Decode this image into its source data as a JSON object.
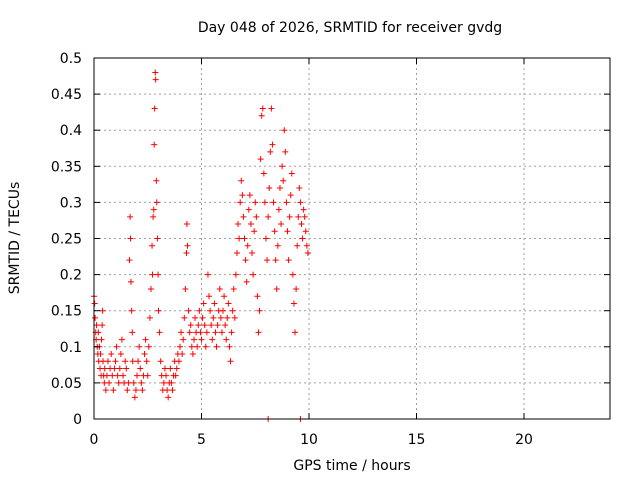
{
  "chart_data": {
    "type": "scatter",
    "title": "Day 048 of 2026, SRMTID for receiver gvdg",
    "xlabel": "GPS time / hours",
    "ylabel": "SRMTID / TECUs",
    "xlim": [
      0,
      24
    ],
    "ylim": [
      0,
      0.5
    ],
    "xticks": [
      0,
      5,
      10,
      15,
      20
    ],
    "xtick_labels": [
      "0",
      "5",
      "10",
      "15",
      "20"
    ],
    "yticks": [
      0,
      0.05,
      0.1,
      0.15,
      0.2,
      0.25,
      0.3,
      0.35,
      0.4,
      0.45,
      0.5
    ],
    "ytick_labels": [
      "0",
      "0.05",
      "0.1",
      "0.15",
      "0.2",
      "0.25",
      "0.3",
      "0.35",
      "0.4",
      "0.45",
      "0.5"
    ],
    "grid": true,
    "marker": "+",
    "marker_color": "#ff0000",
    "series": [
      {
        "name": "SRMTID",
        "points": [
          [
            0.0,
            0.17
          ],
          [
            0.03,
            0.16
          ],
          [
            0.05,
            0.14
          ],
          [
            0.08,
            0.12
          ],
          [
            0.1,
            0.11
          ],
          [
            0.12,
            0.13
          ],
          [
            0.15,
            0.1
          ],
          [
            0.18,
            0.09
          ],
          [
            0.2,
            0.12
          ],
          [
            0.22,
            0.08
          ],
          [
            0.25,
            0.1
          ],
          [
            0.28,
            0.07
          ],
          [
            0.3,
            0.09
          ],
          [
            0.33,
            0.06
          ],
          [
            0.35,
            0.11
          ],
          [
            0.38,
            0.13
          ],
          [
            0.4,
            0.15
          ],
          [
            0.42,
            0.08
          ],
          [
            0.45,
            0.06
          ],
          [
            0.48,
            0.05
          ],
          [
            0.5,
            0.07
          ],
          [
            0.55,
            0.04
          ],
          [
            0.6,
            0.06
          ],
          [
            0.65,
            0.08
          ],
          [
            0.7,
            0.05
          ],
          [
            0.75,
            0.07
          ],
          [
            0.8,
            0.09
          ],
          [
            0.85,
            0.06
          ],
          [
            0.9,
            0.04
          ],
          [
            0.95,
            0.07
          ],
          [
            1.0,
            0.08
          ],
          [
            1.05,
            0.1
          ],
          [
            1.1,
            0.06
          ],
          [
            1.15,
            0.05
          ],
          [
            1.2,
            0.07
          ],
          [
            1.25,
            0.09
          ],
          [
            1.3,
            0.11
          ],
          [
            1.35,
            0.06
          ],
          [
            1.4,
            0.05
          ],
          [
            1.45,
            0.08
          ],
          [
            1.5,
            0.07
          ],
          [
            1.55,
            0.04
          ],
          [
            1.6,
            0.05
          ],
          [
            1.65,
            0.22
          ],
          [
            1.68,
            0.28
          ],
          [
            1.7,
            0.25
          ],
          [
            1.72,
            0.19
          ],
          [
            1.75,
            0.15
          ],
          [
            1.78,
            0.12
          ],
          [
            1.8,
            0.08
          ],
          [
            1.85,
            0.05
          ],
          [
            1.9,
            0.03
          ],
          [
            1.95,
            0.04
          ],
          [
            2.0,
            0.06
          ],
          [
            2.05,
            0.08
          ],
          [
            2.1,
            0.1
          ],
          [
            2.15,
            0.07
          ],
          [
            2.2,
            0.05
          ],
          [
            2.25,
            0.04
          ],
          [
            2.3,
            0.06
          ],
          [
            2.35,
            0.09
          ],
          [
            2.4,
            0.11
          ],
          [
            2.45,
            0.08
          ],
          [
            2.5,
            0.06
          ],
          [
            2.55,
            0.1
          ],
          [
            2.6,
            0.14
          ],
          [
            2.65,
            0.18
          ],
          [
            2.7,
            0.24
          ],
          [
            2.72,
            0.2
          ],
          [
            2.75,
            0.28
          ],
          [
            2.78,
            0.29
          ],
          [
            2.8,
            0.38
          ],
          [
            2.82,
            0.43
          ],
          [
            2.85,
            0.48
          ],
          [
            2.87,
            0.47
          ],
          [
            2.9,
            0.33
          ],
          [
            2.92,
            0.3
          ],
          [
            2.95,
            0.25
          ],
          [
            2.98,
            0.2
          ],
          [
            3.0,
            0.15
          ],
          [
            3.05,
            0.12
          ],
          [
            3.1,
            0.08
          ],
          [
            3.15,
            0.06
          ],
          [
            3.2,
            0.04
          ],
          [
            3.25,
            0.05
          ],
          [
            3.3,
            0.07
          ],
          [
            3.35,
            0.06
          ],
          [
            3.4,
            0.04
          ],
          [
            3.45,
            0.03
          ],
          [
            3.5,
            0.05
          ],
          [
            3.55,
            0.07
          ],
          [
            3.6,
            0.05
          ],
          [
            3.65,
            0.04
          ],
          [
            3.7,
            0.06
          ],
          [
            3.75,
            0.08
          ],
          [
            3.8,
            0.06
          ],
          [
            3.85,
            0.07
          ],
          [
            3.9,
            0.09
          ],
          [
            3.95,
            0.08
          ],
          [
            4.0,
            0.1
          ],
          [
            4.05,
            0.12
          ],
          [
            4.1,
            0.09
          ],
          [
            4.15,
            0.11
          ],
          [
            4.2,
            0.14
          ],
          [
            4.25,
            0.18
          ],
          [
            4.3,
            0.23
          ],
          [
            4.32,
            0.27
          ],
          [
            4.35,
            0.24
          ],
          [
            4.4,
            0.15
          ],
          [
            4.45,
            0.12
          ],
          [
            4.5,
            0.13
          ],
          [
            4.55,
            0.1
          ],
          [
            4.6,
            0.09
          ],
          [
            4.65,
            0.11
          ],
          [
            4.7,
            0.14
          ],
          [
            4.75,
            0.12
          ],
          [
            4.8,
            0.1
          ],
          [
            4.85,
            0.13
          ],
          [
            4.9,
            0.15
          ],
          [
            4.95,
            0.12
          ],
          [
            5.0,
            0.11
          ],
          [
            5.05,
            0.14
          ],
          [
            5.1,
            0.16
          ],
          [
            5.15,
            0.13
          ],
          [
            5.2,
            0.1
          ],
          [
            5.25,
            0.12
          ],
          [
            5.3,
            0.2
          ],
          [
            5.35,
            0.17
          ],
          [
            5.4,
            0.15
          ],
          [
            5.45,
            0.13
          ],
          [
            5.5,
            0.11
          ],
          [
            5.55,
            0.14
          ],
          [
            5.6,
            0.16
          ],
          [
            5.65,
            0.12
          ],
          [
            5.7,
            0.1
          ],
          [
            5.75,
            0.13
          ],
          [
            5.8,
            0.15
          ],
          [
            5.85,
            0.18
          ],
          [
            5.9,
            0.14
          ],
          [
            5.95,
            0.12
          ],
          [
            6.0,
            0.15
          ],
          [
            6.05,
            0.17
          ],
          [
            6.1,
            0.13
          ],
          [
            6.15,
            0.11
          ],
          [
            6.2,
            0.14
          ],
          [
            6.25,
            0.16
          ],
          [
            6.3,
            0.1
          ],
          [
            6.35,
            0.08
          ],
          [
            6.4,
            0.12
          ],
          [
            6.45,
            0.15
          ],
          [
            6.5,
            0.18
          ],
          [
            6.55,
            0.14
          ],
          [
            6.6,
            0.2
          ],
          [
            6.65,
            0.23
          ],
          [
            6.7,
            0.27
          ],
          [
            6.75,
            0.25
          ],
          [
            6.8,
            0.3
          ],
          [
            6.85,
            0.33
          ],
          [
            6.9,
            0.31
          ],
          [
            6.95,
            0.28
          ],
          [
            7.0,
            0.25
          ],
          [
            7.05,
            0.22
          ],
          [
            7.1,
            0.19
          ],
          [
            7.15,
            0.24
          ],
          [
            7.2,
            0.29
          ],
          [
            7.25,
            0.31
          ],
          [
            7.3,
            0.27
          ],
          [
            7.35,
            0.23
          ],
          [
            7.4,
            0.2
          ],
          [
            7.45,
            0.26
          ],
          [
            7.5,
            0.3
          ],
          [
            7.55,
            0.28
          ],
          [
            7.6,
            0.17
          ],
          [
            7.65,
            0.12
          ],
          [
            7.7,
            0.15
          ],
          [
            7.75,
            0.36
          ],
          [
            7.8,
            0.42
          ],
          [
            7.85,
            0.43
          ],
          [
            7.9,
            0.34
          ],
          [
            7.95,
            0.3
          ],
          [
            8.0,
            0.25
          ],
          [
            8.05,
            0.22
          ],
          [
            8.1,
            0.28
          ],
          [
            8.15,
            0.32
          ],
          [
            8.2,
            0.37
          ],
          [
            8.25,
            0.43
          ],
          [
            8.3,
            0.38
          ],
          [
            8.35,
            0.3
          ],
          [
            8.4,
            0.26
          ],
          [
            8.45,
            0.22
          ],
          [
            8.5,
            0.18
          ],
          [
            8.55,
            0.24
          ],
          [
            8.6,
            0.29
          ],
          [
            8.65,
            0.32
          ],
          [
            8.7,
            0.27
          ],
          [
            8.75,
            0.35
          ],
          [
            8.8,
            0.33
          ],
          [
            8.85,
            0.4
          ],
          [
            8.9,
            0.37
          ],
          [
            8.95,
            0.3
          ],
          [
            9.0,
            0.26
          ],
          [
            9.05,
            0.22
          ],
          [
            9.1,
            0.28
          ],
          [
            9.15,
            0.31
          ],
          [
            9.2,
            0.34
          ],
          [
            9.25,
            0.2
          ],
          [
            9.3,
            0.16
          ],
          [
            9.35,
            0.12
          ],
          [
            9.4,
            0.18
          ],
          [
            9.45,
            0.24
          ],
          [
            9.5,
            0.28
          ],
          [
            9.55,
            0.32
          ],
          [
            9.6,
            0.3
          ],
          [
            9.65,
            0.27
          ],
          [
            9.7,
            0.25
          ],
          [
            9.75,
            0.29
          ],
          [
            9.8,
            0.28
          ],
          [
            9.85,
            0.26
          ],
          [
            9.9,
            0.24
          ],
          [
            9.95,
            0.23
          ],
          [
            8.1,
            0.0
          ],
          [
            9.6,
            0.0
          ]
        ]
      }
    ]
  }
}
